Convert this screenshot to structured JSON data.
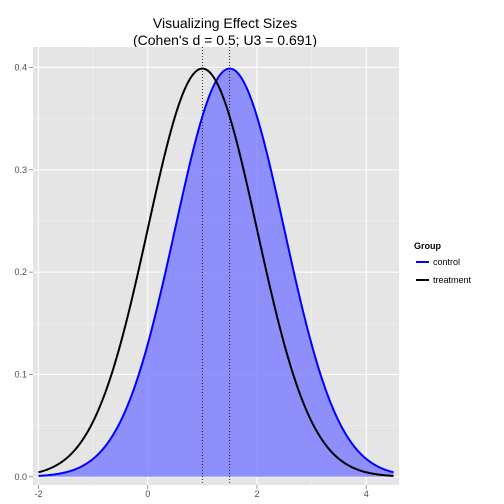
{
  "chart_data": {
    "type": "line",
    "title_lines": [
      "Visualizing Effect Sizes",
      "(Cohen's d = 0.5; U3 = 0.691)"
    ],
    "xlabel": "",
    "ylabel": "",
    "xlim": [
      -2.1,
      4.6
    ],
    "ylim": [
      -0.008,
      0.42
    ],
    "x_ticks": [
      -2,
      0,
      2,
      4
    ],
    "x_tick_labels": [
      "-2",
      "0",
      "2",
      "4"
    ],
    "y_ticks": [
      0.0,
      0.1,
      0.2,
      0.3,
      0.4
    ],
    "y_tick_labels": [
      "0.0",
      "0.1",
      "0.2",
      "0.3",
      "0.4"
    ],
    "grid": true,
    "legend": {
      "title": "Group",
      "placement": "right"
    },
    "series": [
      {
        "name": "control",
        "color": "#0000ff",
        "distribution": "normal",
        "mean": 1.5,
        "sd": 1,
        "x_range": [
          -2,
          4.5
        ],
        "mean_line": "dotted"
      },
      {
        "name": "treatment",
        "color": "#000000",
        "distribution": "normal",
        "mean": 1.0,
        "sd": 1,
        "x_range": [
          -2,
          4.5
        ],
        "mean_line": "dotted"
      }
    ],
    "shaded_area": {
      "under": "control",
      "color": "#8080ff",
      "description": "overlap fill"
    }
  }
}
